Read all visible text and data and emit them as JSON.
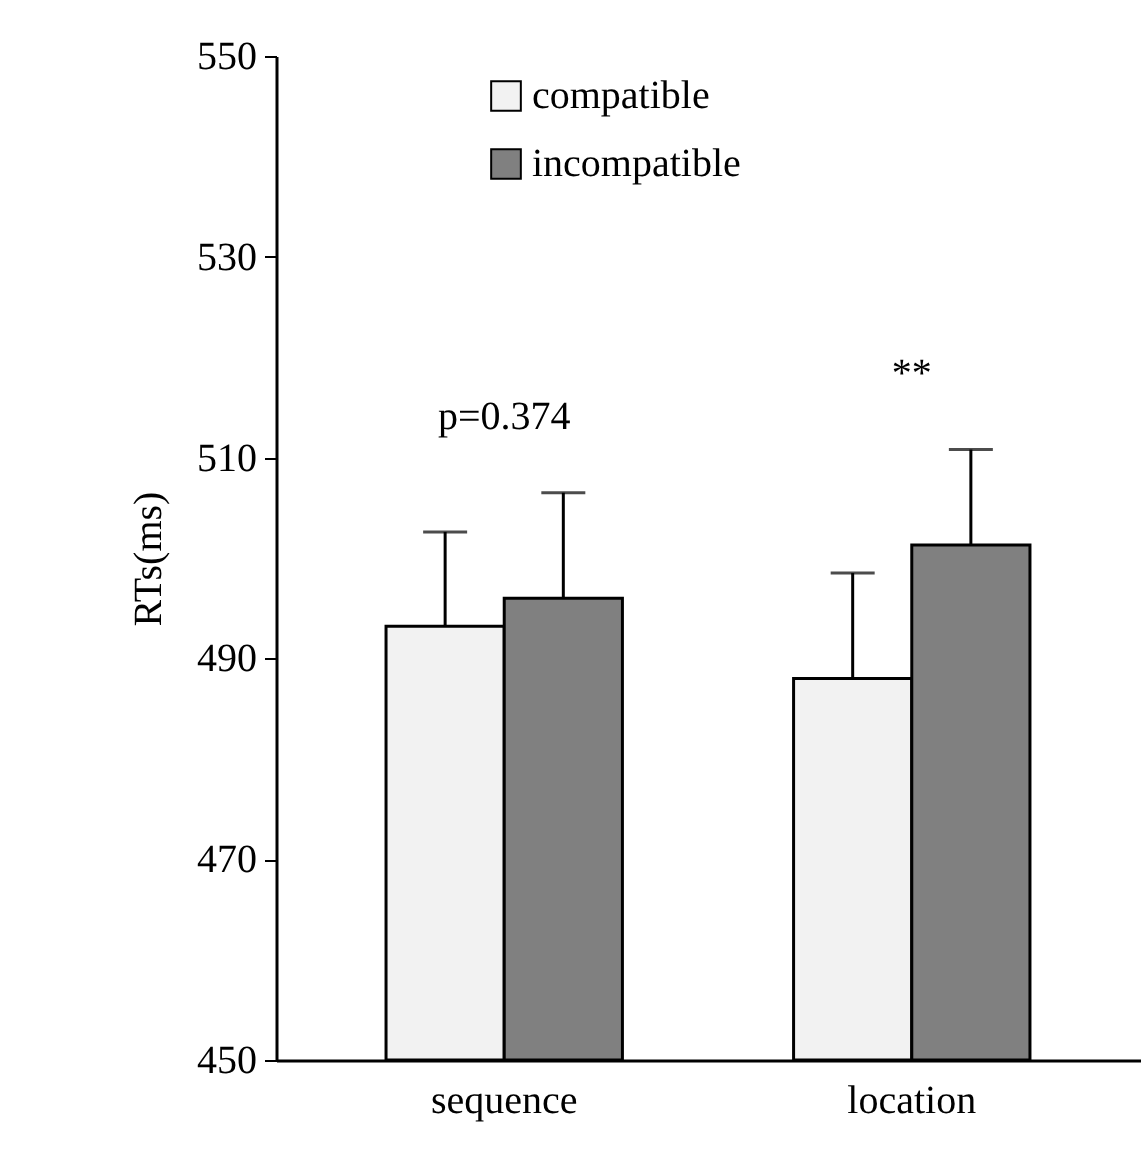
{
  "chart_data": {
    "type": "bar",
    "ylabel": "RTs(ms)",
    "categories": [
      "sequence",
      "location"
    ],
    "series": [
      {
        "name": "compatible",
        "color": "#f2f2f2",
        "values": [
          493.2,
          488.0
        ],
        "errors": [
          9.4,
          10.5
        ]
      },
      {
        "name": "incompatible",
        "color": "#808080",
        "values": [
          496.0,
          501.3
        ],
        "errors": [
          10.5,
          9.5
        ]
      }
    ],
    "ylim": [
      450,
      550
    ],
    "yticks": [
      450,
      470,
      490,
      510,
      530,
      550
    ],
    "grid": false,
    "legend": "top",
    "annotations": [
      "p=0.374",
      "**"
    ]
  }
}
